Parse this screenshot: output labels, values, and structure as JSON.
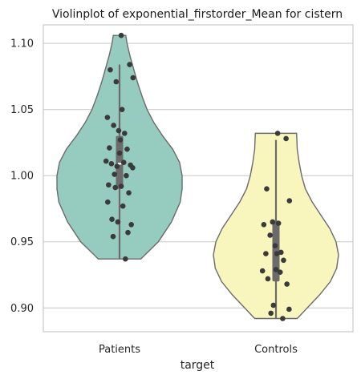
{
  "chart_data": {
    "type": "violin",
    "title": "Violinplot of exponential_firstorder_Mean for cistern",
    "xlabel": "target",
    "ylabel": "",
    "categories": [
      "Patients",
      "Controls"
    ],
    "ylim": [
      0.882,
      1.114
    ],
    "yticks": [
      0.9,
      0.95,
      1.0,
      1.05,
      1.1
    ],
    "ytick_labels": [
      "0.90",
      "0.95",
      "1.00",
      "1.05",
      "1.10"
    ],
    "grid": true,
    "series": [
      {
        "category": "Patients",
        "color": "#96cbc0",
        "min": 0.937,
        "max": 1.106,
        "box": {
          "q1": 0.99,
          "median": 1.009,
          "q3": 1.03,
          "whisker_low": 0.937,
          "whisker_high": 1.084
        },
        "density": [
          [
            0.937,
            0.34
          ],
          [
            0.95,
            0.62
          ],
          [
            0.965,
            0.83
          ],
          [
            0.98,
            0.97
          ],
          [
            0.99,
            1.0
          ],
          [
            1.0,
            1.0
          ],
          [
            1.01,
            0.96
          ],
          [
            1.02,
            0.85
          ],
          [
            1.03,
            0.69
          ],
          [
            1.04,
            0.55
          ],
          [
            1.05,
            0.44
          ],
          [
            1.06,
            0.36
          ],
          [
            1.07,
            0.29
          ],
          [
            1.08,
            0.23
          ],
          [
            1.09,
            0.17
          ],
          [
            1.1,
            0.12
          ],
          [
            1.106,
            0.1
          ]
        ],
        "points": [
          1.106,
          1.084,
          1.08,
          1.074,
          1.071,
          1.05,
          1.044,
          1.038,
          1.034,
          1.032,
          1.027,
          1.021,
          1.02,
          1.017,
          1.011,
          1.01,
          1.009,
          1.008,
          1.007,
          1.006,
          1.001,
          1.0,
          0.993,
          0.992,
          0.991,
          0.987,
          0.98,
          0.977,
          0.967,
          0.965,
          0.963,
          0.957,
          0.954,
          0.937
        ]
      },
      {
        "category": "Controls",
        "color": "#f8f5bd",
        "min": 0.892,
        "max": 1.032,
        "box": {
          "q1": 0.92,
          "median": 0.941,
          "q3": 0.966,
          "whisker_low": 0.892,
          "whisker_high": 1.027
        },
        "density": [
          [
            0.892,
            0.34
          ],
          [
            0.9,
            0.5
          ],
          [
            0.91,
            0.7
          ],
          [
            0.92,
            0.87
          ],
          [
            0.93,
            0.97
          ],
          [
            0.94,
            1.0
          ],
          [
            0.95,
            0.96
          ],
          [
            0.96,
            0.86
          ],
          [
            0.97,
            0.72
          ],
          [
            0.98,
            0.58
          ],
          [
            0.99,
            0.47
          ],
          [
            1.0,
            0.41
          ],
          [
            1.01,
            0.37
          ],
          [
            1.02,
            0.34
          ],
          [
            1.032,
            0.33
          ]
        ],
        "points": [
          1.032,
          1.028,
          0.99,
          0.981,
          0.965,
          0.964,
          0.963,
          0.955,
          0.947,
          0.942,
          0.941,
          0.941,
          0.936,
          0.929,
          0.928,
          0.927,
          0.922,
          0.918,
          0.902,
          0.899,
          0.896,
          0.892
        ]
      }
    ]
  }
}
